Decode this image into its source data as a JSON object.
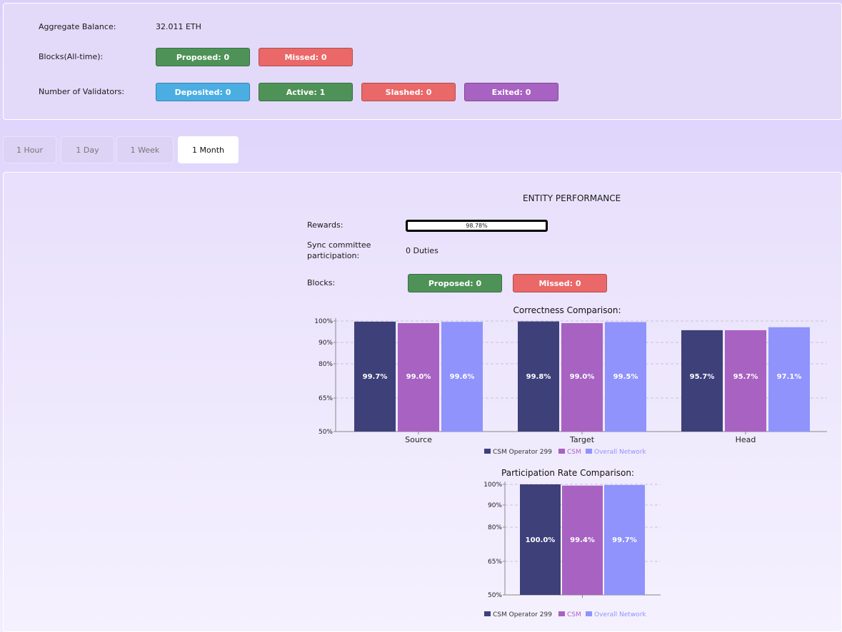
{
  "summary": {
    "aggregate_label": "Aggregate Balance:",
    "aggregate_value": "32.011 ETH",
    "blocks_label": "Blocks(All-time):",
    "blocks_proposed": "Proposed: 0",
    "blocks_missed": "Missed: 0",
    "validators_label": "Number of Validators:",
    "deposited": "Deposited: 0",
    "active": "Active: 1",
    "slashed": "Slashed: 0",
    "exited": "Exited: 0"
  },
  "tabs": [
    {
      "label": "1 Hour"
    },
    {
      "label": "1 Day"
    },
    {
      "label": "1 Week"
    },
    {
      "label": "1 Month",
      "active": true
    }
  ],
  "performance": {
    "title": "ENTITY PERFORMANCE",
    "rewards_label": "Rewards:",
    "rewards_value": "98.78%",
    "rewards_fraction": 0.9878,
    "sync_label_1": "Sync committee",
    "sync_label_2": "participation:",
    "sync_value": "0 Duties",
    "blocks_label": "Blocks:",
    "blocks_proposed": "Proposed: 0",
    "blocks_missed": "Missed: 0"
  },
  "colors": {
    "green": "#4e9257",
    "red": "#ea6868",
    "blue": "#4baee3",
    "purple": "#a862c1",
    "series1": "#3d4079",
    "series2": "#a862c1",
    "series3": "#8f93fb"
  },
  "chart_data": [
    {
      "type": "bar",
      "title": "Correctness Comparison:",
      "categories": [
        "Source",
        "Target",
        "Head"
      ],
      "series": [
        {
          "name": "CSM Operator 299",
          "values": [
            99.7,
            99.8,
            95.7
          ],
          "labels": [
            "99.7%",
            "99.8%",
            "95.7%"
          ]
        },
        {
          "name": "CSM",
          "values": [
            99.0,
            99.0,
            95.7
          ],
          "labels": [
            "99.0%",
            "99.0%",
            "95.7%"
          ]
        },
        {
          "name": "Overall Network",
          "values": [
            99.6,
            99.5,
            97.1
          ],
          "labels": [
            "99.6%",
            "99.5%",
            "97.1%"
          ]
        }
      ],
      "yticks": [
        50,
        65,
        80,
        90,
        100
      ],
      "ytick_labels": [
        "50%",
        "65%",
        "80%",
        "90%",
        "100%"
      ],
      "ylim": [
        50,
        100
      ],
      "grid": true,
      "legend": "bottom"
    },
    {
      "type": "bar",
      "title": "Participation Rate Comparison:",
      "categories": [
        ""
      ],
      "series": [
        {
          "name": "CSM Operator 299",
          "values": [
            100.0
          ],
          "labels": [
            "100.0%"
          ]
        },
        {
          "name": "CSM",
          "values": [
            99.4
          ],
          "labels": [
            "99.4%"
          ]
        },
        {
          "name": "Overall Network",
          "values": [
            99.7
          ],
          "labels": [
            "99.7%"
          ]
        }
      ],
      "yticks": [
        50,
        65,
        80,
        90,
        100
      ],
      "ytick_labels": [
        "50%",
        "65%",
        "80%",
        "90%",
        "100%"
      ],
      "ylim": [
        50,
        100
      ],
      "grid": true,
      "legend": "bottom"
    }
  ]
}
